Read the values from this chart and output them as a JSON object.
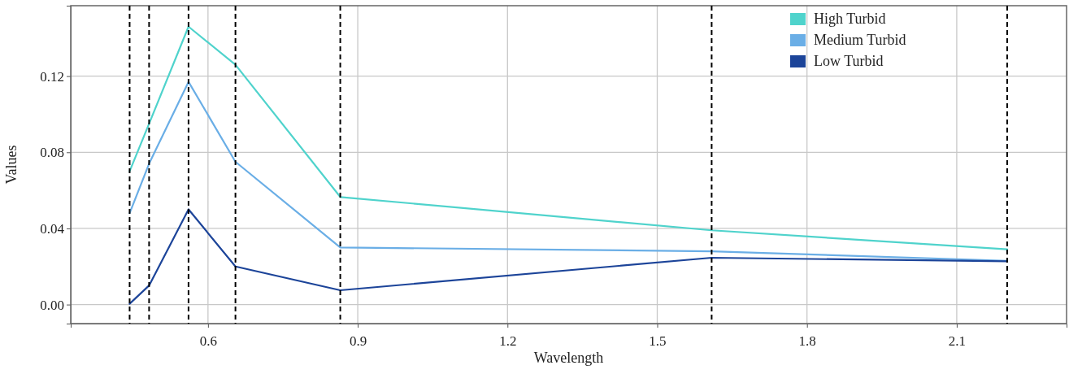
{
  "chart_data": {
    "type": "line",
    "xlabel": "Wavelength",
    "ylabel": "Values",
    "xlim": [
      0.325,
      2.32
    ],
    "xticks": [
      0.6,
      0.9,
      1.2,
      1.5,
      1.8,
      2.1
    ],
    "ylim": [
      -0.01,
      0.157
    ],
    "yticks": [
      {
        "value": 0,
        "label": "0.00"
      },
      0.04,
      0.08,
      0.12
    ],
    "grid": true,
    "legend": "top",
    "marker": "none",
    "line_style": "solid",
    "x": [
      0.443,
      0.482,
      0.561,
      0.655,
      0.865,
      1.609,
      2.201
    ],
    "series": [
      {
        "name": "High Turbid",
        "color": "#4fd3cc",
        "values": [
          0.07,
          0.095,
          0.146,
          0.126,
          0.0565,
          0.039,
          0.029
        ]
      },
      {
        "name": "Medium Turbid",
        "color": "#6aaee6",
        "values": [
          0.048,
          0.074,
          0.117,
          0.075,
          0.03,
          0.028,
          0.023
        ]
      },
      {
        "name": "Low Turbid",
        "color": "#1c4499",
        "values": [
          0.0004,
          0.01,
          0.05,
          0.02,
          0.0075,
          0.0246,
          0.0227
        ]
      }
    ],
    "ref_lines": [
      {
        "axis": "x",
        "value": 0.443,
        "color": "#000000",
        "line_style": "dashed"
      },
      {
        "axis": "x",
        "value": 0.482,
        "color": "#000000",
        "line_style": "dashed"
      },
      {
        "axis": "x",
        "value": 0.561,
        "color": "#000000",
        "line_style": "dashed"
      },
      {
        "axis": "x",
        "value": 0.655,
        "color": "#000000",
        "line_style": "dashed"
      },
      {
        "axis": "x",
        "value": 0.865,
        "color": "#000000",
        "line_style": "dashed"
      },
      {
        "axis": "x",
        "value": 1.609,
        "color": "#000000",
        "line_style": "dashed"
      },
      {
        "axis": "x",
        "value": 2.201,
        "color": "#000000",
        "line_style": "dashed"
      }
    ]
  }
}
